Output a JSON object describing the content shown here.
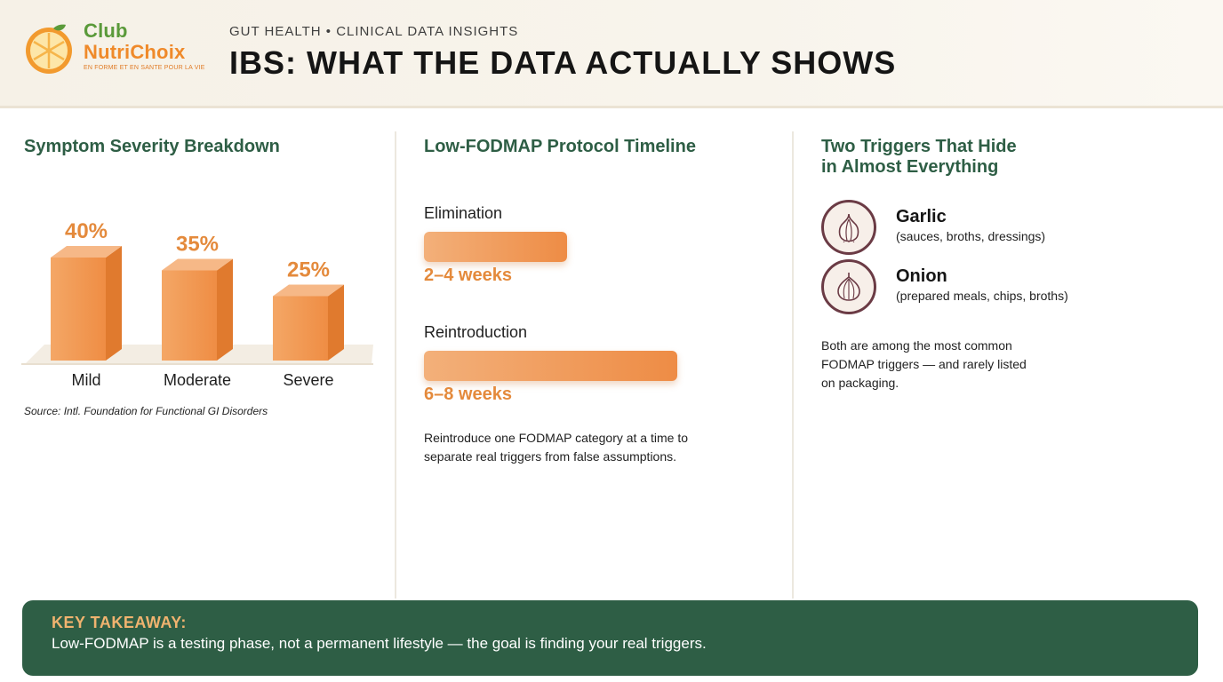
{
  "brand": {
    "club": "Club",
    "name": "NutriChoix",
    "tagline": "EN FORME ET EN SANTE POUR LA VIE",
    "accent_green": "#5a9a3a",
    "accent_orange": "#ef8a2a"
  },
  "header": {
    "kicker": "GUT HEALTH • CLINICAL DATA INSIGHTS",
    "title": "IBS: WHAT THE DATA ACTUALLY SHOWS"
  },
  "severity": {
    "title": "Symptom Severity Breakdown",
    "source": "Source: Intl. Foundation for Functional GI Disorders"
  },
  "chart_data": {
    "type": "bar",
    "title": "Symptom Severity Breakdown",
    "categories": [
      "Mild",
      "Moderate",
      "Severe"
    ],
    "values": [
      40,
      35,
      25
    ],
    "value_labels": [
      "40%",
      "35%",
      "25%"
    ],
    "unit": "%",
    "ylim": [
      0,
      40
    ],
    "grid": false,
    "legend": "none",
    "color": "#ee8c45"
  },
  "timeline": {
    "title": "Low-FODMAP Protocol Timeline",
    "phases": [
      {
        "label": "Elimination",
        "duration": "2–4 weeks",
        "max_weeks": 4
      },
      {
        "label": "Reintroduction",
        "duration": "6–8 weeks",
        "max_weeks": 8
      }
    ],
    "note": "Reintroduce one FODMAP category at a time to separate real triggers from false assumptions."
  },
  "triggers": {
    "title_line1": "Two Triggers That Hide",
    "title_line2": "in Almost Everything",
    "items": [
      {
        "name": "Garlic",
        "examples": "(sauces, broths, dressings)",
        "icon": "garlic-icon"
      },
      {
        "name": "Onion",
        "examples": "(prepared meals, chips, broths)",
        "icon": "onion-icon"
      }
    ],
    "note": "Both are among the most common FODMAP triggers — and rarely listed on packaging."
  },
  "takeaway": {
    "label": "KEY TAKEAWAY:",
    "text": "Low-FODMAP is a testing phase, not a permanent lifestyle — the goal is finding your real triggers.",
    "background": "#2e5e45"
  }
}
